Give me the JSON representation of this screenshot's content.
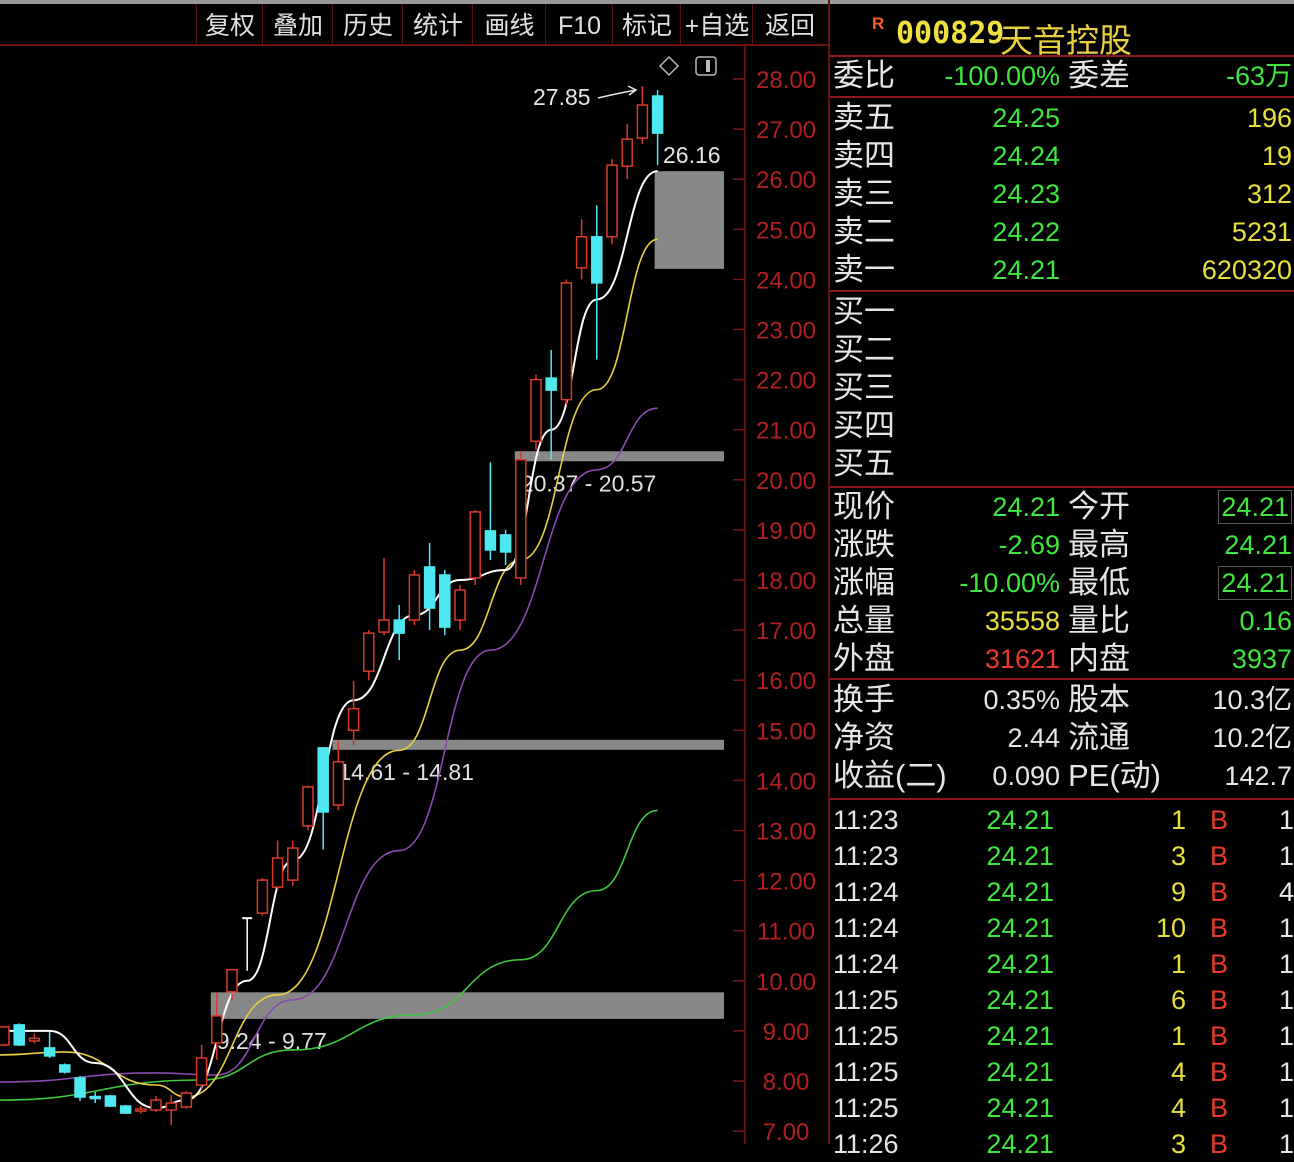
{
  "toolbar": {
    "buttons": [
      "复权",
      "叠加",
      "历史",
      "统计",
      "画线",
      "F10",
      "标记",
      "+自选",
      "返回"
    ]
  },
  "chart_icons": {
    "diamond": "diamond-icon",
    "panel": "panel-toggle-icon"
  },
  "chart_data": {
    "type": "candlestick",
    "title": "",
    "y_axis": {
      "ticks": [
        "28.00",
        "27.00",
        "26.00",
        "25.00",
        "24.00",
        "23.00",
        "22.00",
        "21.00",
        "20.00",
        "19.00",
        "18.00",
        "17.00",
        "16.00",
        "15.00",
        "14.00",
        "13.00",
        "12.00",
        "11.00",
        "10.00",
        "9.00",
        "8.00",
        "7.00"
      ],
      "range": [
        7.0,
        28.0
      ]
    },
    "colors": {
      "up": "#d83a2a",
      "down": "#4ee8f0",
      "ma5": "#ffffff",
      "ma10": "#e8d040",
      "ma20": "#8a4ab0",
      "ma60": "#3ec83e",
      "zone": "#a0a0a0",
      "axis": "#b02020"
    },
    "candles": [
      [
        8.72,
        9.08,
        9.1,
        8.7
      ],
      [
        9.12,
        8.72,
        9.15,
        8.7
      ],
      [
        8.8,
        8.85,
        8.95,
        8.75
      ],
      [
        8.66,
        8.5,
        8.98,
        8.46
      ],
      [
        8.32,
        8.18,
        8.35,
        8.15
      ],
      [
        8.06,
        7.68,
        8.1,
        7.6
      ],
      [
        7.69,
        7.66,
        7.78,
        7.56
      ],
      [
        7.7,
        7.5,
        7.72,
        7.48
      ],
      [
        7.5,
        7.36,
        7.52,
        7.34
      ],
      [
        7.4,
        7.44,
        7.5,
        7.35
      ],
      [
        7.42,
        7.62,
        7.7,
        7.38
      ],
      [
        7.42,
        7.56,
        7.72,
        7.12
      ],
      [
        7.48,
        7.76,
        7.8,
        7.45
      ],
      [
        7.92,
        8.46,
        8.72,
        7.82
      ],
      [
        8.76,
        9.3,
        9.77,
        8.42
      ],
      [
        9.78,
        10.22,
        10.24,
        9.6
      ],
      [
        11.25,
        11.25,
        11.25,
        10.2
      ],
      [
        11.35,
        12.01,
        12.05,
        11.3
      ],
      [
        11.87,
        12.45,
        12.8,
        11.8
      ],
      [
        12.01,
        12.65,
        12.8,
        11.9
      ],
      [
        13.09,
        13.87,
        13.9,
        13.0
      ],
      [
        14.65,
        13.37,
        14.65,
        12.62
      ],
      [
        13.51,
        14.37,
        14.81,
        13.4
      ],
      [
        15.0,
        15.43,
        15.98,
        14.7
      ],
      [
        16.18,
        16.94,
        17.0,
        16.0
      ],
      [
        16.96,
        17.2,
        18.44,
        16.9
      ],
      [
        17.2,
        16.94,
        17.5,
        16.4
      ],
      [
        17.2,
        18.1,
        18.2,
        17.1
      ],
      [
        18.26,
        17.44,
        18.74,
        17.0
      ],
      [
        18.1,
        17.06,
        18.2,
        16.9
      ],
      [
        17.2,
        17.8,
        17.9,
        17.0
      ],
      [
        18.04,
        19.36,
        19.4,
        17.9
      ],
      [
        18.98,
        18.6,
        20.35,
        18.4
      ],
      [
        18.9,
        18.56,
        19.0,
        18.3
      ],
      [
        18.04,
        20.4,
        20.57,
        17.9
      ],
      [
        20.77,
        22.0,
        22.1,
        20.6
      ],
      [
        22.03,
        21.79,
        22.59,
        20.4
      ],
      [
        21.6,
        23.93,
        24.0,
        21.5
      ],
      [
        24.23,
        24.85,
        25.2,
        24.0
      ],
      [
        24.85,
        23.93,
        25.48,
        22.4
      ],
      [
        24.85,
        26.28,
        26.4,
        24.7
      ],
      [
        26.26,
        26.8,
        27.1,
        26.0
      ],
      [
        26.82,
        27.48,
        27.85,
        26.7
      ],
      [
        27.66,
        26.92,
        27.78,
        26.28
      ]
    ],
    "ma_lines": {
      "ma5": [
        [
          0,
          9.0
        ],
        [
          3,
          9.0
        ],
        [
          6,
          8.36
        ],
        [
          10,
          7.46
        ],
        [
          12,
          7.62
        ],
        [
          16,
          10.0
        ],
        [
          19,
          12.4
        ],
        [
          23,
          15.6
        ],
        [
          27,
          17.3
        ],
        [
          30,
          18.0
        ],
        [
          33,
          18.2
        ],
        [
          36,
          21.0
        ],
        [
          39,
          23.6
        ],
        [
          43,
          26.16
        ]
      ],
      "ma10": [
        [
          0,
          8.52
        ],
        [
          4,
          8.58
        ],
        [
          10,
          7.92
        ],
        [
          12,
          7.68
        ],
        [
          18,
          9.72
        ],
        [
          26,
          14.6
        ],
        [
          30,
          16.6
        ],
        [
          34,
          18.4
        ],
        [
          39,
          21.8
        ],
        [
          43,
          24.8
        ]
      ],
      "ma20": [
        [
          0,
          7.98
        ],
        [
          10,
          8.16
        ],
        [
          14,
          8.12
        ],
        [
          19,
          9.62
        ],
        [
          26,
          12.6
        ],
        [
          32,
          16.6
        ],
        [
          39,
          20.2
        ],
        [
          43,
          21.43
        ]
      ],
      "ma60": [
        [
          0,
          7.62
        ],
        [
          13,
          8.02
        ],
        [
          19,
          8.62
        ],
        [
          27,
          9.32
        ],
        [
          34,
          10.42
        ],
        [
          39,
          11.8
        ],
        [
          43,
          13.4
        ]
      ]
    },
    "zones": [
      {
        "from_index": 14,
        "low": 9.24,
        "high": 9.77,
        "label": "9.24 - 9.77"
      },
      {
        "from_index": 22,
        "low": 14.61,
        "high": 14.81,
        "label": "14.61 - 14.81"
      },
      {
        "from_index": 34,
        "low": 20.37,
        "high": 20.57,
        "label": "20.37 - 20.57"
      },
      {
        "from_index": 43.2,
        "low": 24.21,
        "high": 26.16,
        "label": ""
      }
    ],
    "annotations": {
      "high_label": "27.85",
      "ma5_label": "26.16"
    }
  },
  "quote": {
    "badge": "R",
    "code": "000829",
    "name": "天音控股",
    "weibi": {
      "label": "委比",
      "value": "-100.00%",
      "label2": "委差",
      "value2": "-63万"
    },
    "asks": [
      {
        "label": "卖五",
        "price": "24.25",
        "vol": "196"
      },
      {
        "label": "卖四",
        "price": "24.24",
        "vol": "19"
      },
      {
        "label": "卖三",
        "price": "24.23",
        "vol": "312"
      },
      {
        "label": "卖二",
        "price": "24.22",
        "vol": "5231"
      },
      {
        "label": "卖一",
        "price": "24.21",
        "vol": "620320"
      }
    ],
    "bids": [
      {
        "label": "买一"
      },
      {
        "label": "买二"
      },
      {
        "label": "买三"
      },
      {
        "label": "买四"
      },
      {
        "label": "买五"
      }
    ],
    "stats": [
      {
        "l1": "现价",
        "v1": "24.21",
        "l2": "今开",
        "v2": "24.21"
      },
      {
        "l1": "涨跌",
        "v1": "-2.69",
        "l2": "最高",
        "v2": "24.21"
      },
      {
        "l1": "涨幅",
        "v1": "-10.00%",
        "l2": "最低",
        "v2": "24.21"
      },
      {
        "l1": "总量",
        "v1": "35558",
        "l2": "量比",
        "v2": "0.16"
      },
      {
        "l1": "外盘",
        "v1": "31621",
        "l2": "内盘",
        "v2": "3937"
      }
    ],
    "fund": [
      {
        "l1": "换手",
        "v1": "0.35%",
        "l2": "股本",
        "v2": "10.3亿"
      },
      {
        "l1": "净资",
        "v1": "2.44",
        "l2": "流通",
        "v2": "10.2亿"
      },
      {
        "l1": "收益(二)",
        "v1": "0.090",
        "l2": "PE(动)",
        "v2": "142.7"
      }
    ],
    "ticks": [
      {
        "time": "11:23",
        "price": "24.21",
        "vol": "1",
        "side": "B",
        "count": "1"
      },
      {
        "time": "11:23",
        "price": "24.21",
        "vol": "3",
        "side": "B",
        "count": "1"
      },
      {
        "time": "11:24",
        "price": "24.21",
        "vol": "9",
        "side": "B",
        "count": "4"
      },
      {
        "time": "11:24",
        "price": "24.21",
        "vol": "10",
        "side": "B",
        "count": "1"
      },
      {
        "time": "11:24",
        "price": "24.21",
        "vol": "1",
        "side": "B",
        "count": "1"
      },
      {
        "time": "11:25",
        "price": "24.21",
        "vol": "6",
        "side": "B",
        "count": "1"
      },
      {
        "time": "11:25",
        "price": "24.21",
        "vol": "1",
        "side": "B",
        "count": "1"
      },
      {
        "time": "11:25",
        "price": "24.21",
        "vol": "4",
        "side": "B",
        "count": "1"
      },
      {
        "time": "11:25",
        "price": "24.21",
        "vol": "4",
        "side": "B",
        "count": "1"
      },
      {
        "time": "11:26",
        "price": "24.21",
        "vol": "3",
        "side": "B",
        "count": "1"
      }
    ]
  }
}
